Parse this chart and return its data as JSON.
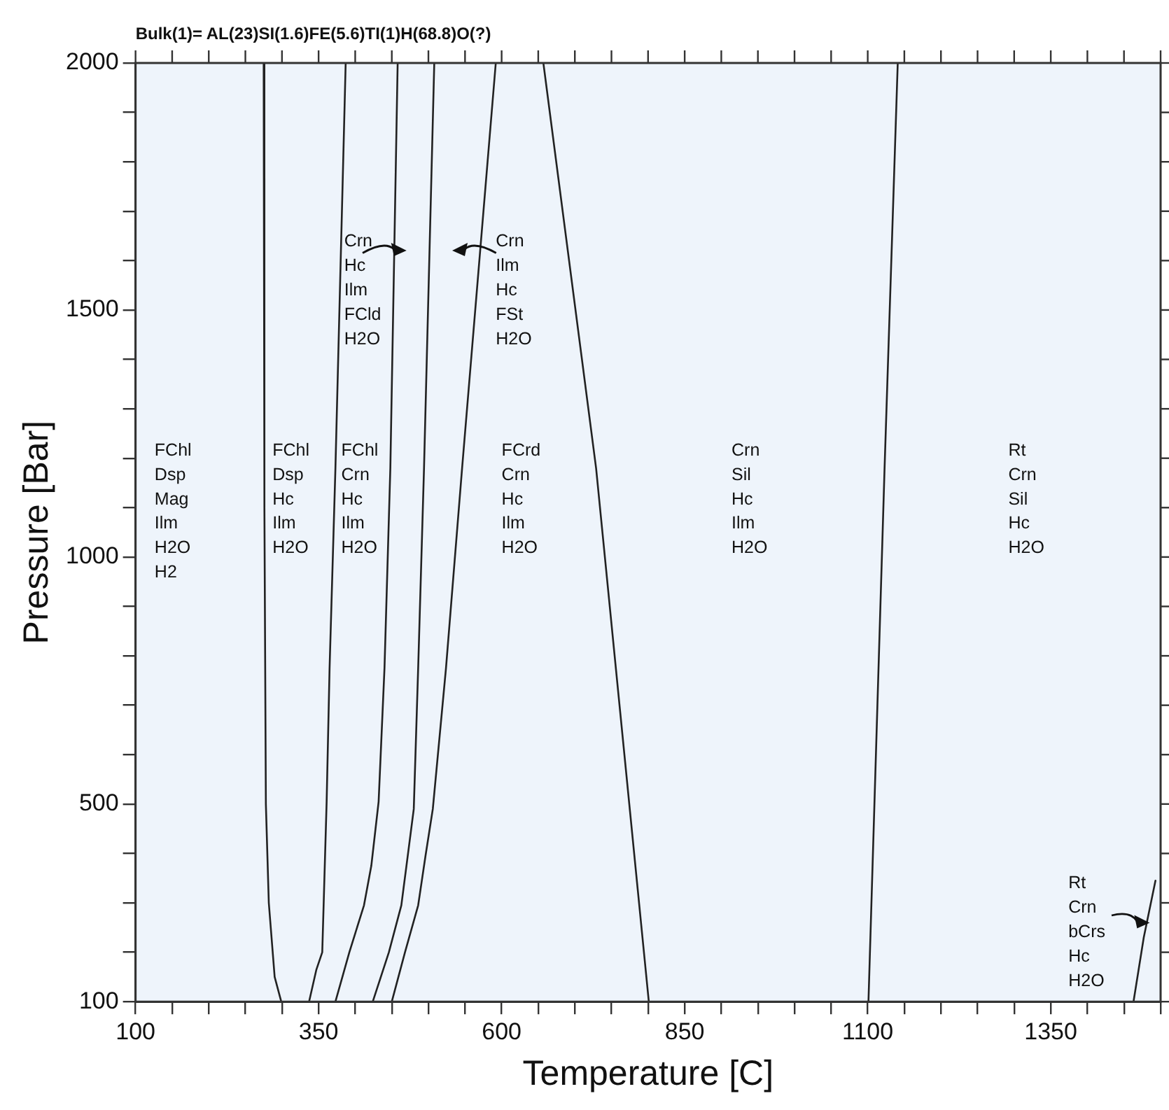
{
  "chart_data": {
    "type": "line",
    "title": "Bulk(1)= AL(23)SI(1.6)FE(5.6)TI(1)H(68.8)O(?)",
    "xlabel": "Temperature [C]",
    "ylabel": "Pressure [Bar]",
    "xlim": [
      100,
      1500
    ],
    "ylim": [
      100,
      2000
    ],
    "xticks": [
      100,
      {
        "value": 150,
        "label": null
      },
      {
        "value": 200,
        "label": null
      },
      {
        "value": 250,
        "label": null
      },
      {
        "value": 300,
        "label": null
      },
      350,
      {
        "value": 400,
        "label": null
      },
      {
        "value": 450,
        "label": null
      },
      {
        "value": 500,
        "label": null
      },
      {
        "value": 550,
        "label": null
      },
      600,
      {
        "value": 650,
        "label": null
      },
      {
        "value": 700,
        "label": null
      },
      {
        "value": 750,
        "label": null
      },
      {
        "value": 800,
        "label": null
      },
      850,
      {
        "value": 900,
        "label": null
      },
      {
        "value": 950,
        "label": null
      },
      {
        "value": 1000,
        "label": null
      },
      {
        "value": 1050,
        "label": null
      },
      1100,
      {
        "value": 1150,
        "label": null
      },
      {
        "value": 1200,
        "label": null
      },
      {
        "value": 1250,
        "label": null
      },
      {
        "value": 1300,
        "label": null
      },
      1350,
      {
        "value": 1400,
        "label": null
      },
      {
        "value": 1450,
        "label": null
      },
      {
        "value": 1500,
        "label": null
      }
    ],
    "yticks": [
      100,
      {
        "value": 200,
        "label": null
      },
      {
        "value": 300,
        "label": null
      },
      {
        "value": 400,
        "label": null
      },
      500,
      {
        "value": 600,
        "label": null
      },
      {
        "value": 700,
        "label": null
      },
      {
        "value": 800,
        "label": null
      },
      {
        "value": 900,
        "label": null
      },
      1000,
      {
        "value": 1100,
        "label": null
      },
      {
        "value": 1200,
        "label": null
      },
      {
        "value": 1300,
        "label": null
      },
      {
        "value": 1400,
        "label": null
      },
      1500,
      {
        "value": 1600,
        "label": null
      },
      {
        "value": 1700,
        "label": null
      },
      {
        "value": 1800,
        "label": null
      },
      {
        "value": 1900,
        "label": null
      },
      2000
    ],
    "grid": false,
    "legend": false,
    "marker": "none",
    "line_style": "solid",
    "series": [
      {
        "color": "#222222",
        "x": [
          275,
          276,
          278,
          282,
          290,
          299
        ],
        "values": [
          2000,
          1100,
          500,
          300,
          150,
          100
        ]
      },
      {
        "color": "#222222",
        "x": [
          387,
          373,
          365,
          361,
          355,
          347,
          337
        ],
        "values": [
          2000,
          1180,
          775,
          505,
          200,
          165,
          100
        ]
      },
      {
        "color": "#222222",
        "x": [
          458,
          448,
          440,
          432,
          422,
          412,
          392,
          373
        ],
        "values": [
          2000,
          1180,
          775,
          505,
          375,
          295,
          200,
          100
        ]
      },
      {
        "color": "#222222",
        "x": [
          508,
          494,
          486,
          480,
          470,
          463,
          446,
          424
        ],
        "values": [
          2000,
          1180,
          775,
          490,
          375,
          295,
          200,
          100
        ]
      },
      {
        "color": "#222222",
        "x": [
          592,
          546,
          524,
          512,
          506,
          496,
          486,
          468,
          450
        ],
        "values": [
          2000,
          1180,
          775,
          585,
          490,
          395,
          295,
          200,
          100
        ]
      },
      {
        "color": "#222222",
        "x": [
          657,
          729,
          801
        ],
        "values": [
          2000,
          1180,
          100
        ]
      },
      {
        "color": "#222222",
        "x": [
          1141,
          1123,
          1101
        ],
        "values": [
          2000,
          1180,
          100
        ]
      },
      {
        "color": "#222222",
        "x": [
          1463,
          1477,
          1493
        ],
        "values": [
          100,
          230,
          345
        ]
      }
    ],
    "annotations": [
      "FChl\nDsp\nMag\nIlm\nH2O\nH2",
      "FChl\nDsp\nHc\nIlm\nH2O",
      "FChl\nCrn\nHc\nIlm\nH2O",
      "FCrd\nCrn\nHc\nIlm\nH2O",
      "Crn\nSil\nHc\nIlm\nH2O",
      "Rt\nCrn\nSil\nHc\nH2O",
      "Crn\nHc\nIlm\nFCld\nH2O",
      "Crn\nIlm\nHc\nFSt\nH2O",
      "Rt\nCrn\nbCrs\nHc\nH2O"
    ]
  }
}
